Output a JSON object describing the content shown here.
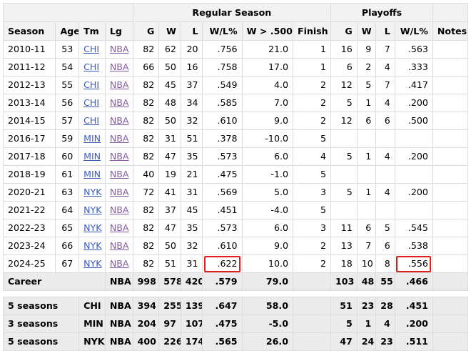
{
  "header": {
    "groups": {
      "regular_season": "Regular Season",
      "playoffs": "Playoffs"
    },
    "columns": [
      "Season",
      "Age",
      "Tm",
      "Lg",
      "G",
      "W",
      "L",
      "W/L%",
      "W > .500",
      "Finish",
      "G",
      "W",
      "L",
      "W/L%",
      "Notes"
    ]
  },
  "rows": [
    {
      "season": "2010-11",
      "age": "53",
      "tm": "CHI",
      "lg": "NBA",
      "g": "82",
      "w": "62",
      "l": "20",
      "wl": ".756",
      "w500": "21.0",
      "finish": "1",
      "pg": "16",
      "pw": "9",
      "pl": "7",
      "pwl": ".563",
      "notes": ""
    },
    {
      "season": "2011-12",
      "age": "54",
      "tm": "CHI",
      "lg": "NBA",
      "g": "66",
      "w": "50",
      "l": "16",
      "wl": ".758",
      "w500": "17.0",
      "finish": "1",
      "pg": "6",
      "pw": "2",
      "pl": "4",
      "pwl": ".333",
      "notes": ""
    },
    {
      "season": "2012-13",
      "age": "55",
      "tm": "CHI",
      "lg": "NBA",
      "g": "82",
      "w": "45",
      "l": "37",
      "wl": ".549",
      "w500": "4.0",
      "finish": "2",
      "pg": "12",
      "pw": "5",
      "pl": "7",
      "pwl": ".417",
      "notes": ""
    },
    {
      "season": "2013-14",
      "age": "56",
      "tm": "CHI",
      "lg": "NBA",
      "g": "82",
      "w": "48",
      "l": "34",
      "wl": ".585",
      "w500": "7.0",
      "finish": "2",
      "pg": "5",
      "pw": "1",
      "pl": "4",
      "pwl": ".200",
      "notes": ""
    },
    {
      "season": "2014-15",
      "age": "57",
      "tm": "CHI",
      "lg": "NBA",
      "g": "82",
      "w": "50",
      "l": "32",
      "wl": ".610",
      "w500": "9.0",
      "finish": "2",
      "pg": "12",
      "pw": "6",
      "pl": "6",
      "pwl": ".500",
      "notes": ""
    },
    {
      "season": "2016-17",
      "age": "59",
      "tm": "MIN",
      "lg": "NBA",
      "g": "82",
      "w": "31",
      "l": "51",
      "wl": ".378",
      "w500": "-10.0",
      "finish": "5",
      "pg": "",
      "pw": "",
      "pl": "",
      "pwl": "",
      "notes": ""
    },
    {
      "season": "2017-18",
      "age": "60",
      "tm": "MIN",
      "lg": "NBA",
      "g": "82",
      "w": "47",
      "l": "35",
      "wl": ".573",
      "w500": "6.0",
      "finish": "4",
      "pg": "5",
      "pw": "1",
      "pl": "4",
      "pwl": ".200",
      "notes": ""
    },
    {
      "season": "2018-19",
      "age": "61",
      "tm": "MIN",
      "lg": "NBA",
      "g": "40",
      "w": "19",
      "l": "21",
      "wl": ".475",
      "w500": "-1.0",
      "finish": "5",
      "pg": "",
      "pw": "",
      "pl": "",
      "pwl": "",
      "notes": ""
    },
    {
      "season": "2020-21",
      "age": "63",
      "tm": "NYK",
      "lg": "NBA",
      "g": "72",
      "w": "41",
      "l": "31",
      "wl": ".569",
      "w500": "5.0",
      "finish": "3",
      "pg": "5",
      "pw": "1",
      "pl": "4",
      "pwl": ".200",
      "notes": ""
    },
    {
      "season": "2021-22",
      "age": "64",
      "tm": "NYK",
      "lg": "NBA",
      "g": "82",
      "w": "37",
      "l": "45",
      "wl": ".451",
      "w500": "-4.0",
      "finish": "5",
      "pg": "",
      "pw": "",
      "pl": "",
      "pwl": "",
      "notes": ""
    },
    {
      "season": "2022-23",
      "age": "65",
      "tm": "NYK",
      "lg": "NBA",
      "g": "82",
      "w": "47",
      "l": "35",
      "wl": ".573",
      "w500": "6.0",
      "finish": "3",
      "pg": "11",
      "pw": "6",
      "pl": "5",
      "pwl": ".545",
      "notes": ""
    },
    {
      "season": "2023-24",
      "age": "66",
      "tm": "NYK",
      "lg": "NBA",
      "g": "82",
      "w": "50",
      "l": "32",
      "wl": ".610",
      "w500": "9.0",
      "finish": "2",
      "pg": "13",
      "pw": "7",
      "pl": "6",
      "pwl": ".538",
      "notes": ""
    },
    {
      "season": "2024-25",
      "age": "67",
      "tm": "NYK",
      "lg": "NBA",
      "g": "82",
      "w": "51",
      "l": "31",
      "wl": ".622",
      "w500": "10.0",
      "finish": "2",
      "pg": "18",
      "pw": "10",
      "pl": "8",
      "pwl": ".556",
      "notes": ""
    }
  ],
  "career": {
    "label": "Career",
    "lg": "NBA",
    "g": "998",
    "w": "578",
    "l": "420",
    "wl": ".579",
    "w500": "79.0",
    "pg": "103",
    "pw": "48",
    "pl": "55",
    "pwl": ".466"
  },
  "splits": [
    {
      "label": "5 seasons",
      "tm": "CHI",
      "lg": "NBA",
      "g": "394",
      "w": "255",
      "l": "139",
      "wl": ".647",
      "w500": "58.0",
      "pg": "51",
      "pw": "23",
      "pl": "28",
      "pwl": ".451"
    },
    {
      "label": "3 seasons",
      "tm": "MIN",
      "lg": "NBA",
      "g": "204",
      "w": "97",
      "l": "107",
      "wl": ".475",
      "w500": "-5.0",
      "pg": "5",
      "pw": "1",
      "pl": "4",
      "pwl": ".200"
    },
    {
      "label": "5 seasons",
      "tm": "NYK",
      "lg": "NBA",
      "g": "400",
      "w": "226",
      "l": "174",
      "wl": ".565",
      "w500": "26.0",
      "pg": "47",
      "pw": "24",
      "pl": "23",
      "pwl": ".511"
    }
  ],
  "highlight_color": "#e0201b"
}
